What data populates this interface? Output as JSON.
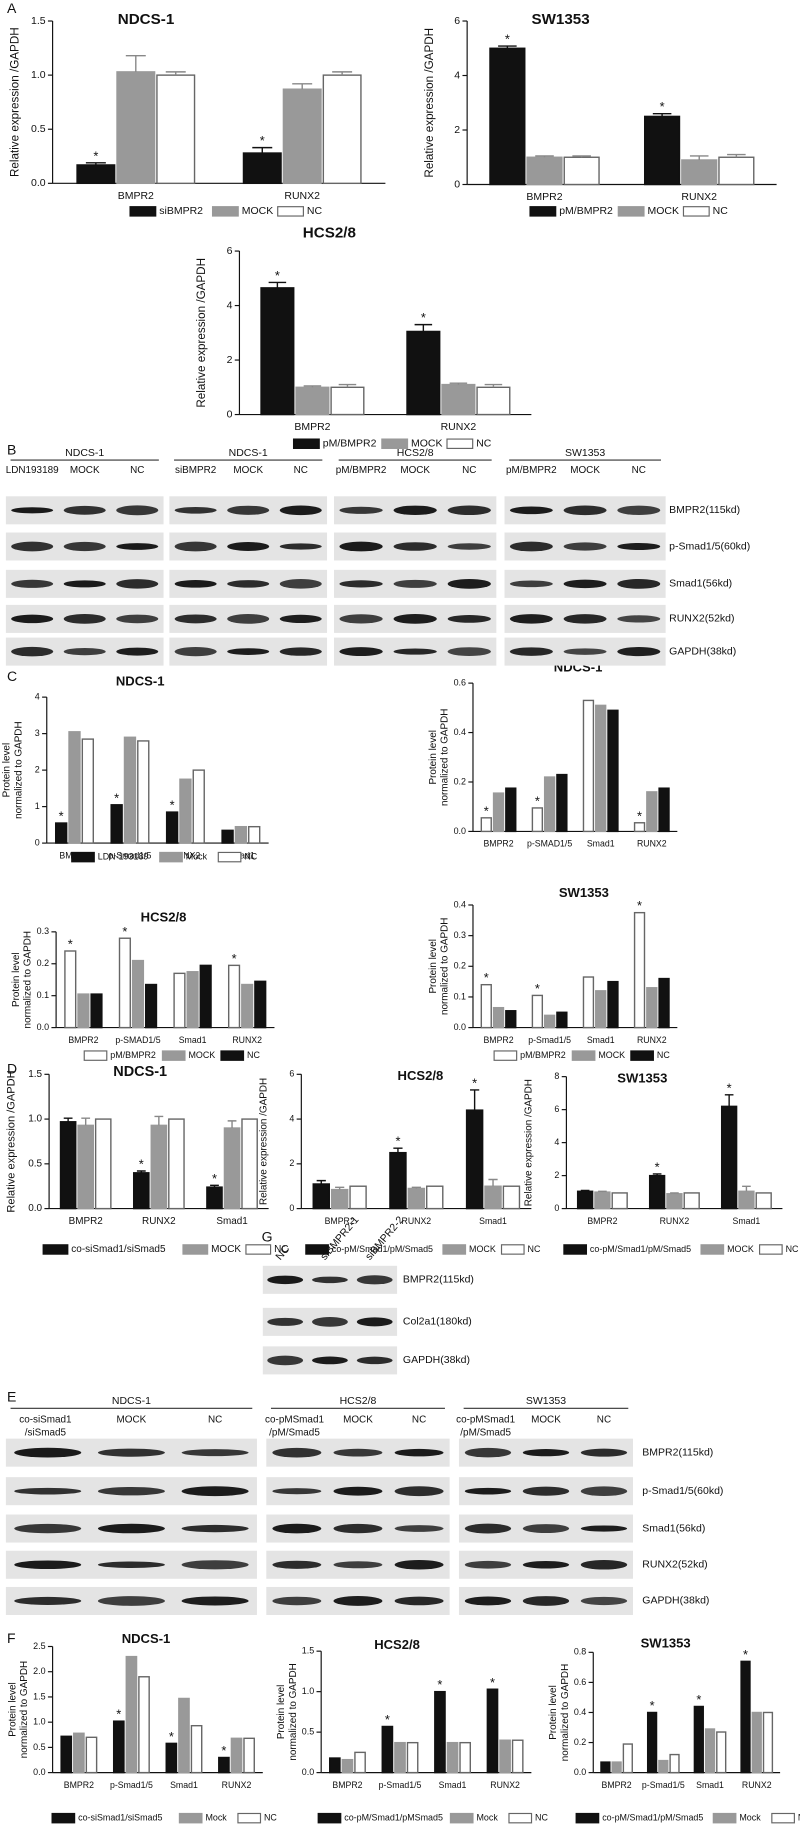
{
  "panel_labels": [
    "A",
    "B",
    "C",
    "D",
    "G",
    "E",
    "F"
  ],
  "chart_data": [
    {
      "type": "bar",
      "title": "NDCS-1",
      "ylabel": "Relative expression /GAPDH",
      "categories": [
        "BMPR2",
        "RUNX2"
      ],
      "ylim": [
        0,
        1.5
      ],
      "yticks": [
        {
          "value": 0,
          "label": "0.0"
        },
        0.5,
        {
          "value": 1,
          "label": "1.0"
        },
        1.5
      ],
      "series": [
        {
          "name": "siBMPR2",
          "color": "#111111",
          "values": [
            0.17,
            0.28
          ],
          "errors": [
            0.02,
            0.05
          ],
          "annotations": [
            "*",
            "*"
          ]
        },
        {
          "name": "MOCK",
          "color": "#999999",
          "values": [
            1.03,
            0.87
          ],
          "errors": [
            0.15,
            0.05
          ]
        },
        {
          "name": "NC",
          "color": "#ffffff",
          "values": [
            1.0,
            1.0
          ],
          "errors": [
            0.03,
            0.03
          ]
        }
      ]
    },
    {
      "type": "bar",
      "title": "SW1353",
      "ylabel": "Relative expression /GAPDH",
      "categories": [
        "BMPR2",
        "RUNX2"
      ],
      "ylim": [
        0,
        6
      ],
      "yticks": [
        0,
        2,
        4,
        6
      ],
      "series": [
        {
          "name": "pM/BMPR2",
          "color": "#111111",
          "values": [
            5.0,
            2.5
          ],
          "errors": [
            0.08,
            0.1
          ],
          "annotations": [
            "*",
            "*"
          ]
        },
        {
          "name": "MOCK",
          "color": "#999999",
          "values": [
            1.0,
            0.9
          ],
          "errors": [
            0.05,
            0.15
          ]
        },
        {
          "name": "NC",
          "color": "#ffffff",
          "values": [
            1.0,
            1.0
          ],
          "errors": [
            0.05,
            0.1
          ]
        }
      ]
    },
    {
      "type": "bar",
      "title": "HCS2/8",
      "ylabel": "Relative expression /GAPDH",
      "categories": [
        "BMPR2",
        "RUNX2"
      ],
      "ylim": [
        0,
        6
      ],
      "yticks": [
        0,
        2,
        4,
        6
      ],
      "series": [
        {
          "name": "pM/BMPR2",
          "color": "#111111",
          "values": [
            4.65,
            3.05
          ],
          "errors": [
            0.2,
            0.25
          ],
          "annotations": [
            "*",
            "*"
          ]
        },
        {
          "name": "MOCK",
          "color": "#999999",
          "values": [
            1.0,
            1.1
          ],
          "errors": [
            0.05,
            0.05
          ]
        },
        {
          "name": "NC",
          "color": "#ffffff",
          "values": [
            1.0,
            1.0
          ],
          "errors": [
            0.1,
            0.1
          ]
        }
      ]
    },
    {
      "type": "bar",
      "title": "NDCS-1",
      "ylabel": [
        "Protein level",
        "normalized to GAPDH"
      ],
      "categories": [
        "BMPR2",
        "p-Smad1/5",
        "RUNX2",
        "Smad1"
      ],
      "ylim": [
        0,
        4
      ],
      "yticks": [
        0,
        1,
        2,
        3,
        4
      ],
      "series": [
        {
          "name": "LDN-193189",
          "color": "#111111",
          "values": [
            0.55,
            1.05,
            0.85,
            0.35
          ],
          "annotations": [
            "*",
            "*",
            "*",
            null
          ]
        },
        {
          "name": "Mock",
          "color": "#999999",
          "values": [
            3.05,
            2.9,
            1.75,
            0.45
          ]
        },
        {
          "name": "NC",
          "color": "#ffffff",
          "values": [
            2.85,
            2.8,
            2.0,
            0.45
          ]
        }
      ]
    },
    {
      "type": "bar",
      "title": "NDCS-1",
      "ylabel": [
        "Protein level",
        "normalized to GAPDH"
      ],
      "categories": [
        "BMPR2",
        "p-SMAD1/5",
        "Smad1",
        "RUNX2"
      ],
      "ylim": [
        0,
        0.6
      ],
      "yticks": [
        {
          "value": 0,
          "label": "0.0"
        },
        0.2,
        0.4,
        0.6
      ],
      "series": [
        {
          "color": "#ffffff",
          "values": [
            0.055,
            0.095,
            0.53,
            0.035
          ],
          "annotations": [
            "*",
            "*",
            null,
            "*"
          ]
        },
        {
          "color": "#999999",
          "values": [
            0.155,
            0.22,
            0.51,
            0.16
          ]
        },
        {
          "color": "#111111",
          "values": [
            0.175,
            0.23,
            0.49,
            0.175
          ]
        }
      ]
    },
    {
      "type": "bar",
      "title": "HCS2/8",
      "ylabel": [
        "Protein level",
        "normalized to GAPDH"
      ],
      "categories": [
        "BMPR2",
        "p-SMAD1/5",
        "Smad1",
        "RUNX2"
      ],
      "ylim": [
        0,
        0.3
      ],
      "yticks": [
        {
          "value": 0,
          "label": "0.0"
        },
        0.1,
        0.2,
        0.3
      ],
      "series": [
        {
          "name": "pM/BMPR2",
          "color": "#ffffff",
          "values": [
            0.24,
            0.28,
            0.17,
            0.195
          ],
          "annotations": [
            "*",
            "*",
            null,
            "*"
          ]
        },
        {
          "name": "MOCK",
          "color": "#999999",
          "values": [
            0.105,
            0.21,
            0.175,
            0.135
          ]
        },
        {
          "name": "NC",
          "color": "#111111",
          "values": [
            0.105,
            0.135,
            0.195,
            0.145
          ]
        }
      ]
    },
    {
      "type": "bar",
      "title": "SW1353",
      "ylabel": [
        "Protein level",
        "normalized to GAPDH"
      ],
      "categories": [
        "BMPR2",
        "p-Smad1/5",
        "Smad1",
        "RUNX2"
      ],
      "ylim": [
        0,
        0.4
      ],
      "yticks": [
        {
          "value": 0,
          "label": "0.0"
        },
        0.1,
        0.2,
        0.3,
        0.4
      ],
      "series": [
        {
          "name": "pM/BMPR2",
          "color": "#ffffff",
          "values": [
            0.14,
            0.105,
            0.165,
            0.375
          ],
          "annotations": [
            "*",
            "*",
            null,
            "*"
          ]
        },
        {
          "name": "MOCK",
          "color": "#999999",
          "values": [
            0.065,
            0.04,
            0.12,
            0.13
          ]
        },
        {
          "name": "NC",
          "color": "#111111",
          "values": [
            0.055,
            0.05,
            0.15,
            0.16
          ]
        }
      ]
    },
    {
      "type": "bar",
      "title": "NDCS-1",
      "ylabel": "Relative expression /GAPDH",
      "categories": [
        "BMPR2",
        "RUNX2",
        "Smad1"
      ],
      "ylim": [
        0,
        1.5
      ],
      "yticks": [
        {
          "value": 0,
          "label": "0.0"
        },
        0.5,
        {
          "value": 1,
          "label": "1.0"
        },
        1.5
      ],
      "series": [
        {
          "name": "co-siSmad1/siSmad5",
          "color": "#111111",
          "values": [
            0.97,
            0.4,
            0.24
          ],
          "errors": [
            0.04,
            0.02,
            0.02
          ],
          "annotations": [
            null,
            "*",
            "*"
          ]
        },
        {
          "name": "MOCK",
          "color": "#999999",
          "values": [
            0.93,
            0.93,
            0.9
          ],
          "errors": [
            0.08,
            0.1,
            0.08
          ]
        },
        {
          "name": "NC",
          "color": "#ffffff",
          "values": [
            1.0,
            1.0,
            1.0
          ]
        }
      ]
    },
    {
      "type": "bar",
      "title": "HCS2/8",
      "ylabel": "Relative expression /GAPDH",
      "categories": [
        "BMPR2",
        "RUNX2",
        "Smad1"
      ],
      "ylim": [
        0,
        6
      ],
      "yticks": [
        0,
        2,
        4,
        6
      ],
      "series": [
        {
          "name": "co-pM/Smad1/pM/Smad5",
          "color": "#111111",
          "values": [
            1.1,
            2.5,
            4.4
          ],
          "errors": [
            0.15,
            0.2,
            0.9
          ],
          "annotations": [
            null,
            "*",
            "*"
          ]
        },
        {
          "name": "MOCK",
          "color": "#999999",
          "values": [
            0.85,
            0.9,
            1.0
          ],
          "errors": [
            0.1,
            0.05,
            0.3
          ]
        },
        {
          "name": "NC",
          "color": "#ffffff",
          "values": [
            1.0,
            1.0,
            1.0
          ]
        }
      ]
    },
    {
      "type": "bar",
      "title": "SW1353",
      "ylabel": "Relative expression /GAPDH",
      "categories": [
        "BMPR2",
        "RUNX2",
        "Smad1"
      ],
      "ylim": [
        0,
        8
      ],
      "yticks": [
        0,
        2,
        4,
        6,
        8
      ],
      "series": [
        {
          "name": "co-pM/Smad1/pM/Smad5",
          "color": "#111111",
          "values": [
            1.05,
            2.0,
            6.2
          ],
          "errors": [
            0.05,
            0.1,
            0.7
          ],
          "annotations": [
            null,
            "*",
            "*"
          ]
        },
        {
          "name": "MOCK",
          "color": "#999999",
          "values": [
            1.0,
            0.9,
            1.05
          ],
          "errors": [
            0.05,
            0.05,
            0.3
          ]
        },
        {
          "name": "NC",
          "color": "#ffffff",
          "values": [
            0.95,
            0.95,
            0.95
          ]
        }
      ]
    },
    {
      "type": "bar",
      "title": "NDCS-1",
      "ylabel": [
        "Protein level",
        "normalized to GAPDH"
      ],
      "categories": [
        "BMPR2",
        "p-Smad1/5",
        "Smad1",
        "RUNX2"
      ],
      "ylim": [
        0,
        2.5
      ],
      "yticks": [
        {
          "value": 0,
          "label": "0.0"
        },
        0.5,
        {
          "value": 1,
          "label": "1.0"
        },
        1.5,
        {
          "value": 2,
          "label": "2.0"
        },
        2.5
      ],
      "series": [
        {
          "name": "co-siSmad1/siSmad5",
          "color": "#111111",
          "values": [
            0.72,
            1.02,
            0.58,
            0.3
          ],
          "annotations": [
            null,
            "*",
            "*",
            "*"
          ]
        },
        {
          "name": "Mock",
          "color": "#999999",
          "values": [
            0.78,
            2.3,
            1.47,
            0.68
          ]
        },
        {
          "name": "NC",
          "color": "#ffffff",
          "values": [
            0.7,
            1.9,
            0.93,
            0.68
          ]
        }
      ]
    },
    {
      "type": "bar",
      "title": "HCS2/8",
      "ylabel": [
        "Protein level",
        "normalized to GAPDH"
      ],
      "categories": [
        "BMPR2",
        "p-Smad1/5",
        "Smad1",
        "RUNX2"
      ],
      "ylim": [
        0,
        1.5
      ],
      "yticks": [
        {
          "value": 0,
          "label": "0.0"
        },
        0.5,
        {
          "value": 1,
          "label": "1.0"
        },
        1.5
      ],
      "series": [
        {
          "name": "co-pM/Smad1/pMSmad5",
          "color": "#111111",
          "values": [
            0.18,
            0.57,
            1.0,
            1.03
          ],
          "annotations": [
            null,
            "*",
            "*",
            "*"
          ]
        },
        {
          "name": "Mock",
          "color": "#999999",
          "values": [
            0.16,
            0.37,
            0.37,
            0.4
          ]
        },
        {
          "name": "NC",
          "color": "#ffffff",
          "values": [
            0.25,
            0.37,
            0.37,
            0.4
          ]
        }
      ]
    },
    {
      "type": "bar",
      "title": "SW1353",
      "ylabel": [
        "Protein level",
        "normalized to GAPDH"
      ],
      "categories": [
        "BMPR2",
        "p-Smad1/5",
        "Smad1",
        "RUNX2"
      ],
      "ylim": [
        0,
        0.8
      ],
      "yticks": [
        {
          "value": 0,
          "label": "0.0"
        },
        0.2,
        0.4,
        0.6,
        0.8
      ],
      "series": [
        {
          "name": "co-pM/Smad1/pM/Smad5",
          "color": "#111111",
          "values": [
            0.07,
            0.4,
            0.44,
            0.74
          ],
          "annotations": [
            null,
            "*",
            "*",
            "*"
          ]
        },
        {
          "name": "Mock",
          "color": "#999999",
          "values": [
            0.07,
            0.08,
            0.29,
            0.4
          ]
        },
        {
          "name": "NC",
          "color": "#ffffff",
          "values": [
            0.19,
            0.12,
            0.27,
            0.4
          ]
        }
      ]
    }
  ],
  "blots": [
    {
      "groups": [
        {
          "title": "NDCS-1",
          "lanes": [
            "LDN193189",
            "MOCK",
            "NC"
          ]
        },
        {
          "title": "NDCS-1",
          "lanes": [
            "siBMPR2",
            "MOCK",
            "NC"
          ]
        },
        {
          "title": "HCS2/8",
          "lanes": [
            "pM/BMPR2",
            "MOCK",
            "NC"
          ]
        },
        {
          "title": "SW1353",
          "lanes": [
            "pM/BMPR2",
            "MOCK",
            "NC"
          ]
        }
      ],
      "rows": [
        "BMPR2(115kd)",
        "p-Smad1/5(60kd)",
        "Smad1(56kd)",
        "RUNX2(52kd)",
        "GAPDH(38kd)"
      ]
    },
    {
      "groups": [
        {
          "lanes": [
            "NC",
            "siBMPR2-1",
            "siBMPR2-2"
          ]
        }
      ],
      "rows": [
        "BMPR2(115kd)",
        "Col2a1(180kd)",
        "GAPDH(38kd)"
      ]
    },
    {
      "groups": [
        {
          "title": "NDCS-1",
          "lanes": [
            [
              "co-siSmad1",
              "/siSmad5"
            ],
            "MOCK",
            "NC"
          ]
        },
        {
          "title": "HCS2/8",
          "lanes": [
            [
              "co-pMSmad1",
              "/pM/Smad5"
            ],
            "MOCK",
            "NC"
          ]
        },
        {
          "title": "SW1353",
          "lanes": [
            [
              "co-pMSmad1",
              "/pM/Smad5"
            ],
            "MOCK",
            "NC"
          ]
        }
      ],
      "rows": [
        "BMPR2(115kd)",
        "p-Smad1/5(60kd)",
        "Smad1(56kd)",
        "RUNX2(52kd)",
        "GAPDH(38kd)"
      ]
    }
  ]
}
